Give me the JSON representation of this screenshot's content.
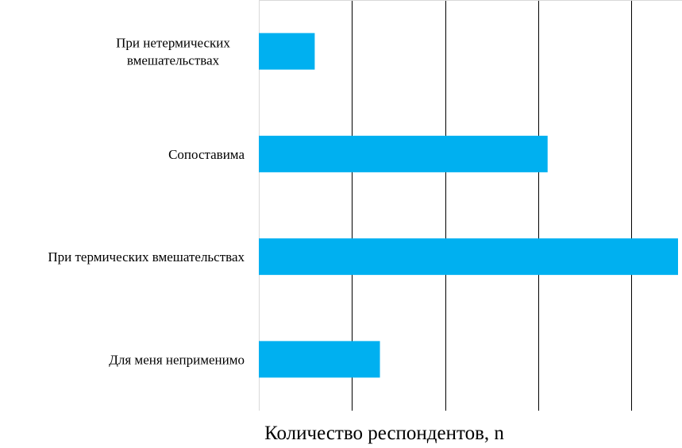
{
  "chart_data": {
    "type": "bar",
    "orientation": "horizontal",
    "title": "",
    "xlabel": "Количество респондентов, n",
    "ylabel": "",
    "categories": [
      [
        "При нетермических",
        "вмешательствах"
      ],
      [
        "Сопоставима"
      ],
      [
        "При термических вмешательствах"
      ],
      [
        "Для меня неприменимо"
      ]
    ],
    "values": [
      3,
      15.5,
      22.5,
      6.5
    ],
    "xlim": [
      0,
      22.5
    ],
    "x_gridlines": [
      0,
      5,
      10,
      15,
      20
    ],
    "grid": true,
    "legend": "none",
    "bar_color": "#00b0f0"
  }
}
